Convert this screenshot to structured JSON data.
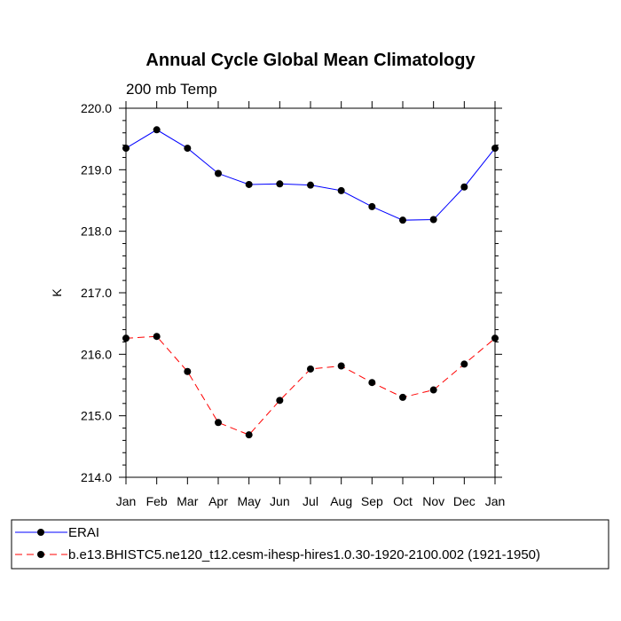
{
  "chart_data": {
    "type": "line",
    "title": "Annual Cycle Global Mean Climatology",
    "subtitle": "200 mb Temp",
    "xlabel": "",
    "ylabel": "K",
    "categories": [
      "Jan",
      "Feb",
      "Mar",
      "Apr",
      "May",
      "Jun",
      "Jul",
      "Aug",
      "Sep",
      "Oct",
      "Nov",
      "Dec",
      "Jan"
    ],
    "ylim": [
      214.0,
      220.0
    ],
    "yticks": [
      "214.0",
      "215.0",
      "216.0",
      "217.0",
      "218.0",
      "219.0",
      "220.0"
    ],
    "grid": false,
    "legend_position": "bottom",
    "series": [
      {
        "name": "ERAI",
        "color": "#0000ff",
        "style": "solid",
        "values": [
          219.35,
          219.65,
          219.35,
          218.94,
          218.76,
          218.77,
          218.75,
          218.66,
          218.4,
          218.18,
          218.19,
          218.72,
          219.35
        ]
      },
      {
        "name": "b.e13.BHISTC5.ne120_t12.cesm-ihesp-hires1.0.30-1920-2100.002 (1921-1950)",
        "color": "#ff0000",
        "style": "dashed",
        "values": [
          216.26,
          216.29,
          215.72,
          214.89,
          214.69,
          215.25,
          215.76,
          215.81,
          215.54,
          215.3,
          215.42,
          215.84,
          216.26
        ]
      }
    ]
  }
}
